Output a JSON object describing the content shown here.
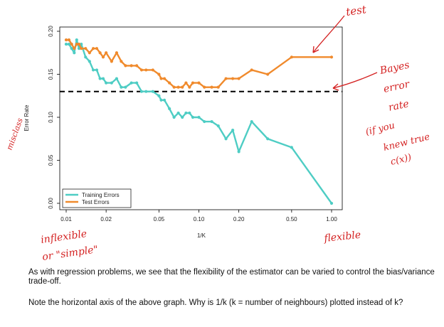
{
  "chart_data": {
    "type": "line",
    "xlabel": "1/K",
    "ylabel": "Error Rate",
    "x_scale": "log",
    "xlim": [
      0.01,
      1.0
    ],
    "ylim": [
      0.0,
      0.2
    ],
    "x_ticks": [
      0.01,
      0.02,
      0.05,
      0.1,
      0.2,
      0.5,
      1.0
    ],
    "x_tick_labels": [
      "0.01",
      "0.02",
      "0.05",
      "0.10",
      "0.20",
      "0.50",
      "1.00"
    ],
    "y_ticks": [
      0.0,
      0.05,
      0.1,
      0.15,
      0.2
    ],
    "y_tick_labels": [
      "0.00",
      "0.05",
      "0.10",
      "0.15",
      "0.20"
    ],
    "legend_position": "bottom-left",
    "reference_line": {
      "y": 0.13,
      "style": "dashed",
      "color": "#000000"
    },
    "series": [
      {
        "name": "Training Errors",
        "color": "#4ecdc4",
        "x": [
          0.01,
          0.0105,
          0.011,
          0.0115,
          0.012,
          0.0125,
          0.013,
          0.014,
          0.015,
          0.016,
          0.017,
          0.018,
          0.019,
          0.02,
          0.022,
          0.024,
          0.026,
          0.028,
          0.031,
          0.034,
          0.037,
          0.04,
          0.045,
          0.05,
          0.052,
          0.055,
          0.06,
          0.065,
          0.07,
          0.075,
          0.08,
          0.085,
          0.09,
          0.1,
          0.11,
          0.125,
          0.14,
          0.16,
          0.18,
          0.2,
          0.25,
          0.33,
          0.5,
          1.0
        ],
        "y": [
          0.185,
          0.185,
          0.18,
          0.175,
          0.19,
          0.18,
          0.185,
          0.17,
          0.165,
          0.155,
          0.155,
          0.145,
          0.145,
          0.14,
          0.14,
          0.145,
          0.135,
          0.135,
          0.14,
          0.14,
          0.13,
          0.13,
          0.13,
          0.125,
          0.12,
          0.12,
          0.11,
          0.1,
          0.105,
          0.1,
          0.105,
          0.105,
          0.1,
          0.1,
          0.095,
          0.095,
          0.09,
          0.075,
          0.085,
          0.06,
          0.095,
          0.075,
          0.065,
          0.0
        ]
      },
      {
        "name": "Test Errors",
        "color": "#f08a2c",
        "x": [
          0.01,
          0.0105,
          0.011,
          0.0115,
          0.012,
          0.0125,
          0.013,
          0.014,
          0.015,
          0.016,
          0.017,
          0.018,
          0.019,
          0.02,
          0.022,
          0.024,
          0.026,
          0.028,
          0.031,
          0.034,
          0.037,
          0.04,
          0.045,
          0.05,
          0.052,
          0.055,
          0.06,
          0.065,
          0.07,
          0.075,
          0.08,
          0.085,
          0.09,
          0.1,
          0.11,
          0.125,
          0.14,
          0.16,
          0.18,
          0.2,
          0.25,
          0.33,
          0.5,
          1.0
        ],
        "y": [
          0.19,
          0.19,
          0.185,
          0.18,
          0.185,
          0.185,
          0.18,
          0.18,
          0.175,
          0.18,
          0.18,
          0.175,
          0.17,
          0.175,
          0.165,
          0.175,
          0.165,
          0.16,
          0.16,
          0.16,
          0.155,
          0.155,
          0.155,
          0.15,
          0.145,
          0.145,
          0.14,
          0.135,
          0.135,
          0.135,
          0.14,
          0.135,
          0.14,
          0.14,
          0.135,
          0.135,
          0.135,
          0.145,
          0.145,
          0.145,
          0.155,
          0.15,
          0.17,
          0.17
        ]
      }
    ]
  },
  "annotations": {
    "test": "test",
    "bayes": [
      "Bayes",
      "error",
      "rate"
    ],
    "bayes_note": [
      "(if you",
      "knew true",
      "c(x))"
    ],
    "misclass": "misclass",
    "inflexible": [
      "inflexible",
      "or \"simple\""
    ],
    "flexible": "flexible"
  },
  "caption": {
    "para1": "As with regression problems, we see that the flexibility of the estimator can be varied to control the bias/variance trade-off.",
    "para2": "Note the horizontal axis of the above graph.  Why is 1/k (k = number of neighbours) plotted instead of k?"
  }
}
